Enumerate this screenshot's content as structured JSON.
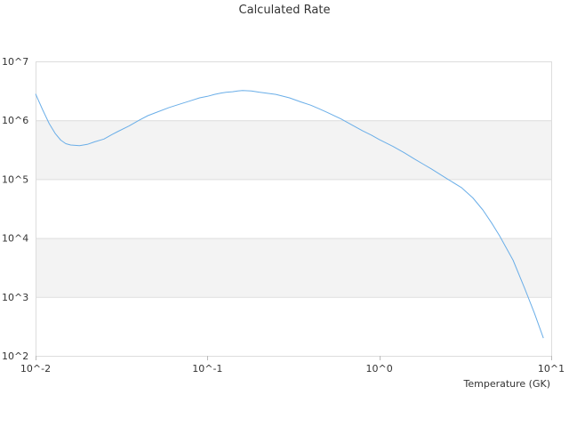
{
  "colors": {
    "line": "#6aaee8",
    "band": "#f3f3f3",
    "grid": "#dddddd",
    "text": "#333333"
  },
  "chart_data": {
    "type": "line",
    "title": "Calculated Rate",
    "xlabel": "Temperature (GK)",
    "ylabel": "",
    "x_scale": "log",
    "y_scale": "log",
    "xlim": [
      0.01,
      10
    ],
    "ylim": [
      100,
      10000000
    ],
    "x_tick_labels": [
      "10^-2",
      "10^-1",
      "10^0",
      "10^1"
    ],
    "y_tick_labels": [
      "10^2",
      "10^3",
      "10^4",
      "10^5",
      "10^6",
      "10^7"
    ],
    "alternating_bands": true,
    "legend": "none",
    "series": [
      {
        "x": [
          0.01,
          0.011,
          0.012,
          0.013,
          0.014,
          0.015,
          0.016,
          0.018,
          0.02,
          0.022,
          0.025,
          0.028,
          0.03,
          0.035,
          0.04,
          0.045,
          0.05,
          0.06,
          0.07,
          0.08,
          0.09,
          0.1,
          0.11,
          0.12,
          0.13,
          0.14,
          0.15,
          0.16,
          0.18,
          0.2,
          0.25,
          0.3,
          0.35,
          0.4,
          0.45,
          0.5,
          0.6,
          0.7,
          0.8,
          0.9,
          1.0,
          1.2,
          1.4,
          1.6,
          1.8,
          2.0,
          2.5,
          3.0,
          3.5,
          4.0,
          4.5,
          5.0,
          6.0,
          7.0,
          8.0,
          9.0
        ],
        "y": [
          2800000,
          1500000,
          880000,
          600000,
          460000,
          400000,
          380000,
          370000,
          390000,
          430000,
          480000,
          580000,
          640000,
          800000,
          1000000,
          1200000,
          1350000,
          1650000,
          1900000,
          2150000,
          2400000,
          2550000,
          2750000,
          2900000,
          3000000,
          3050000,
          3150000,
          3200000,
          3150000,
          3000000,
          2750000,
          2400000,
          2050000,
          1800000,
          1550000,
          1350000,
          1050000,
          820000,
          660000,
          560000,
          470000,
          360000,
          280000,
          220000,
          180000,
          150000,
          100000,
          72000,
          48000,
          30000,
          18000,
          11000,
          4200,
          1400,
          520,
          200
        ]
      }
    ]
  }
}
